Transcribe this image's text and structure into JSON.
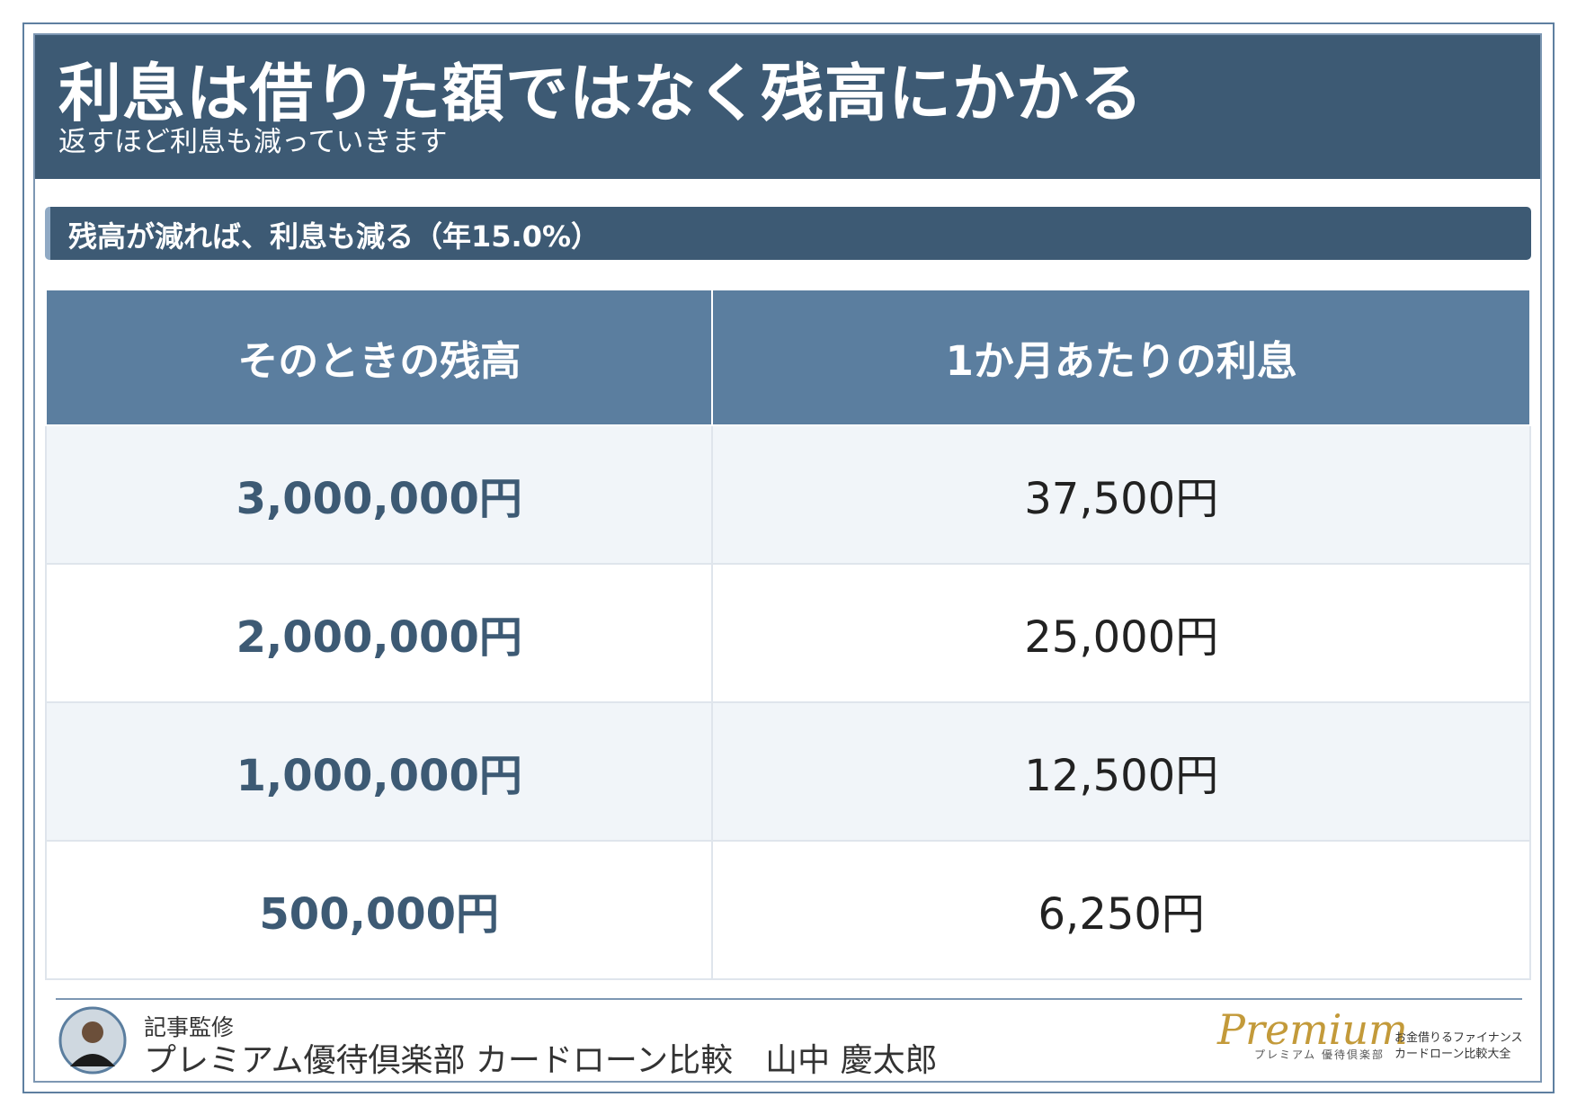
{
  "header": {
    "title": "利息は借りた額ではなく残高にかかる",
    "subtitle": "返すほど利息も減っていきます"
  },
  "section": {
    "title": "残高が減れば、利息も減る（年15.0%）"
  },
  "table": {
    "columns": [
      "そのときの残高",
      "1か月あたりの利息"
    ],
    "rows": [
      [
        "3,000,000円",
        "37,500円"
      ],
      [
        "2,000,000円",
        "25,000円"
      ],
      [
        "1,000,000円",
        "12,500円"
      ],
      [
        "500,000円",
        "6,250円"
      ]
    ]
  },
  "footer": {
    "label": "記事監修",
    "name": "プレミアム優待倶楽部 カードローン比較　山中 慶太郎"
  },
  "logo": {
    "mark": "Premium",
    "ruby": "プレミアム 優待倶楽部",
    "tagline": [
      "お金借りるファイナンス",
      "カードローン比較大全"
    ]
  }
}
